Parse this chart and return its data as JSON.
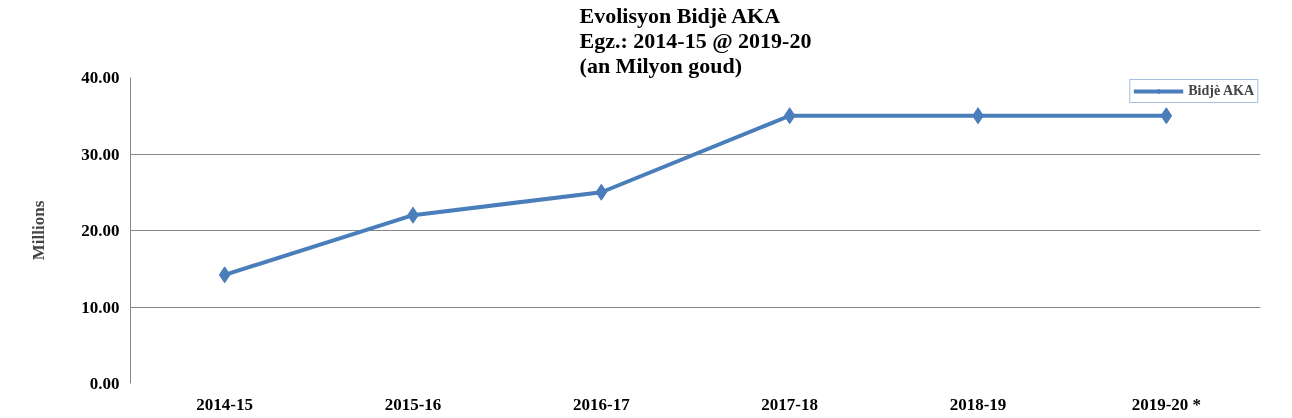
{
  "chart_data": {
    "type": "line",
    "title": "Evolisyon Bidjè AKA\nEgz.: 2014-15 @ 2019-20\n(an Milyon goud)",
    "ylabel": "Millions",
    "categories": [
      "2014-15",
      "2015-16",
      "2016-17",
      "2017-18",
      "2018-19",
      "2019-20 *"
    ],
    "series": [
      {
        "name": "Bidjè AKA",
        "color": "#4a7ebb",
        "values": [
          14.2,
          22,
          25,
          35,
          35,
          35
        ]
      }
    ],
    "ylim": [
      0,
      40
    ],
    "yticks": [
      {
        "value": 0,
        "label": "0.00"
      },
      {
        "value": 10,
        "label": "10.00"
      },
      {
        "value": 20,
        "label": "20.00"
      },
      {
        "value": 30,
        "label": "30.00"
      },
      {
        "value": 40,
        "label": "40.00"
      }
    ],
    "grid": "y",
    "legend": "top right",
    "marker": "diamond",
    "line_style": "solid"
  }
}
